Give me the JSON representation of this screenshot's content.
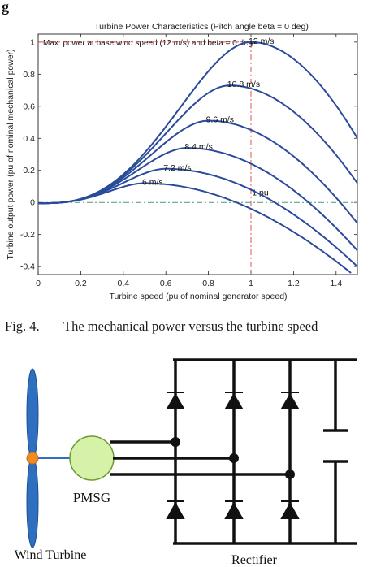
{
  "page": {
    "partial_heading": "g",
    "figure_caption": {
      "number": "Fig. 4.",
      "text": "The mechanical power versus the turbine speed"
    }
  },
  "chart_data": {
    "type": "line",
    "title": "Turbine Power Characteristics (Pitch angle beta = 0 deg)",
    "xlabel": "Turbine speed (pu of nominal generator speed)",
    "ylabel": "Turbine output power (pu of nominal mechanical power)",
    "xlim": [
      0,
      1.5
    ],
    "ylim": [
      -0.45,
      1.05
    ],
    "xticks": [
      0,
      0.2,
      0.4,
      0.6,
      0.8,
      1,
      1.2,
      1.4
    ],
    "yticks": [
      -0.4,
      -0.2,
      0,
      0.2,
      0.4,
      0.6,
      0.8,
      1
    ],
    "grid": false,
    "annotation_top": "Max. power at base wind speed (12 m/s) and beta = 0 deg",
    "reference_label": "1 pu",
    "series": [
      {
        "name": "6 m/s",
        "peak_x": 0.5,
        "peak_y": 0.12,
        "start_x": 0.0,
        "start_y": -0.005,
        "end_x": 1.47,
        "end_y": -0.44
      },
      {
        "name": "7.2 m/s",
        "peak_x": 0.6,
        "peak_y": 0.21,
        "start_x": 0.0,
        "start_y": -0.005,
        "end_x": 1.5,
        "end_y": -0.4
      },
      {
        "name": "8.4 m/s",
        "peak_x": 0.7,
        "peak_y": 0.34,
        "start_x": 0.0,
        "start_y": -0.005,
        "end_x": 1.5,
        "end_y": -0.3
      },
      {
        "name": "9.6 m/s",
        "peak_x": 0.8,
        "peak_y": 0.51,
        "start_x": 0.0,
        "start_y": -0.005,
        "end_x": 1.5,
        "end_y": -0.13
      },
      {
        "name": "10.8 m/s",
        "peak_x": 0.9,
        "peak_y": 0.73,
        "start_x": 0.0,
        "start_y": -0.005,
        "end_x": 1.5,
        "end_y": 0.12
      },
      {
        "name": "12 m/s",
        "peak_x": 1.0,
        "peak_y": 1.0,
        "start_x": 0.0,
        "start_y": -0.005,
        "end_x": 1.5,
        "end_y": 0.4
      }
    ],
    "colors": {
      "curve": "#2a4b9b",
      "reference": "#d9534f",
      "zero_line": "#4a9a7a"
    }
  },
  "circuit": {
    "turbine_label": "Wind Turbine",
    "generator_label": "PMSG",
    "rectifier_label": "Rectifier",
    "colors": {
      "blade": "#2f6fc0",
      "hub": "#f08a24",
      "generator_fill": "#d6f2a8",
      "generator_stroke": "#6a9a35",
      "wire": "#111111"
    }
  }
}
